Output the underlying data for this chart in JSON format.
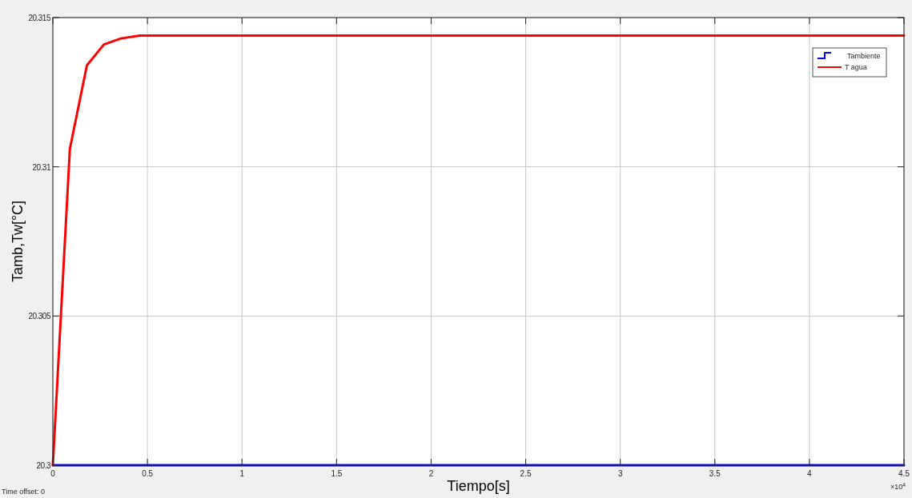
{
  "chart_data": {
    "type": "line",
    "xlabel": "Tiempo[s]",
    "ylabel": "Tamb,Tw[°C]",
    "xlim": [
      0,
      4.5
    ],
    "xticks": [
      0,
      0.5,
      1,
      1.5,
      2,
      2.5,
      3,
      3.5,
      4,
      4.5
    ],
    "ylim": [
      20.3,
      20.315
    ],
    "yticks": [
      20.3,
      20.305,
      20.31,
      20.315
    ],
    "grid": true,
    "legend": "top right",
    "annotations": [
      "×10$^{4}$",
      "Time offset:  0"
    ],
    "series": [
      {
        "name": "Tambiente",
        "type": "step",
        "color": "#0000ff",
        "x": [
          0,
          4.5
        ],
        "values": [
          20.3,
          20.3
        ]
      },
      {
        "name": "T agua",
        "color": "#ff0000",
        "x": [
          0,
          0.09,
          0.18,
          0.27,
          0.36,
          0.46,
          0.7,
          4.5
        ],
        "values": [
          20.3,
          20.3106,
          20.3134,
          20.3141,
          20.3143,
          20.3144,
          20.3144,
          20.3144
        ]
      }
    ]
  }
}
